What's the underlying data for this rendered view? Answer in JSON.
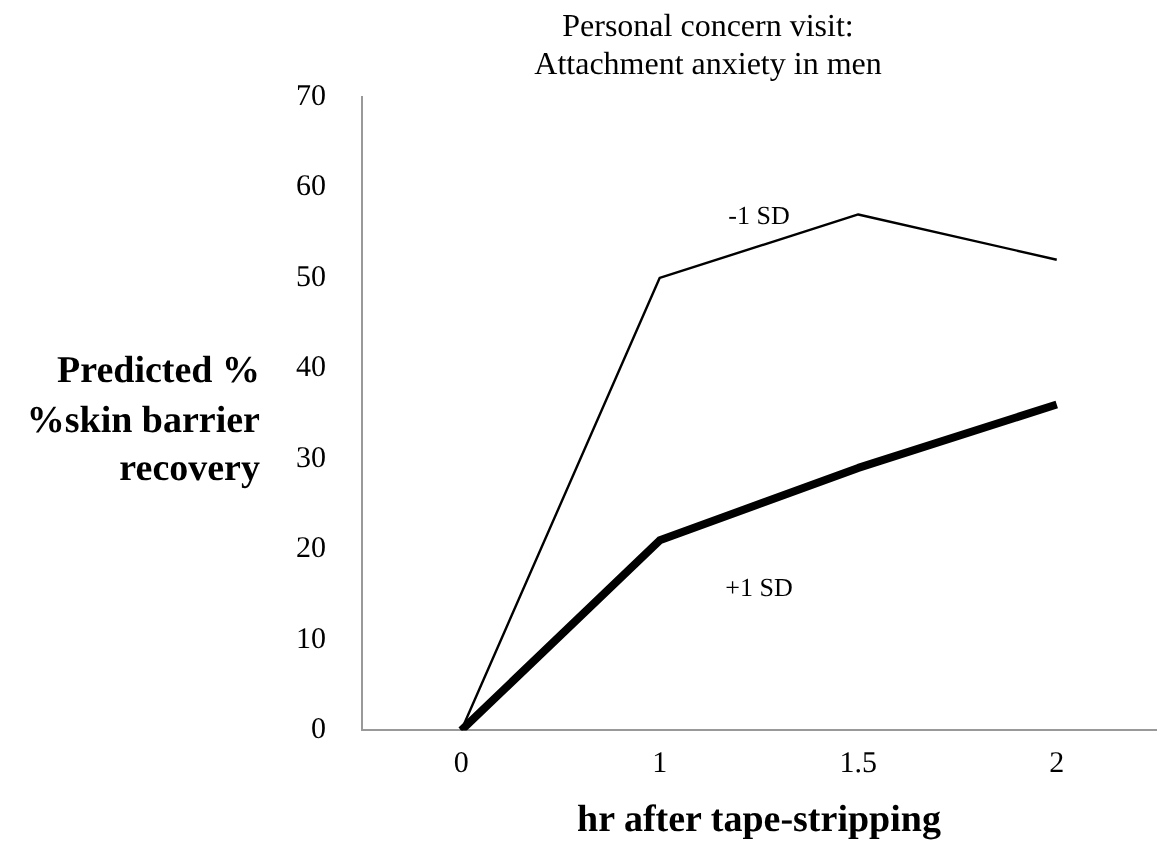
{
  "chart_data": {
    "type": "line",
    "title": "Personal concern visit:\nAttachment anxiety in men",
    "xlabel": "hr after tape-stripping",
    "ylabel": "Predicted %\n%skin barrier\nrecovery",
    "categories": [
      "0",
      "1",
      "1.5",
      "2"
    ],
    "series": [
      {
        "name": "-1 SD",
        "color": "#000000",
        "values": [
          0,
          50,
          57,
          52
        ]
      },
      {
        "name": "+1 SD",
        "color": "#000000",
        "values": [
          0,
          21,
          29,
          36
        ]
      }
    ],
    "ylim": [
      0,
      70
    ],
    "yticks": [
      0,
      10,
      20,
      30,
      40,
      50,
      60,
      70
    ],
    "grid": false,
    "legend": false,
    "marker": "none",
    "line_style": "solid"
  }
}
